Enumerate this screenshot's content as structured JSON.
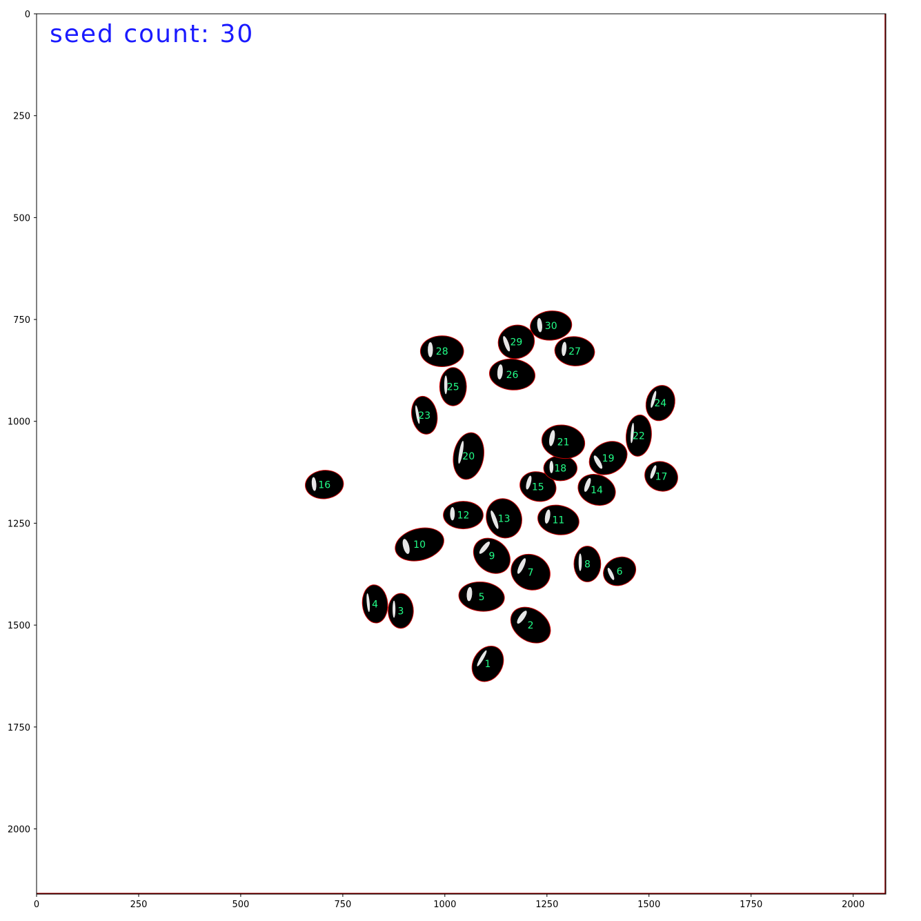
{
  "image": {
    "overlay_text": "seed count: 30",
    "x_range": [
      0,
      2080
    ],
    "y_range": [
      0,
      2160
    ],
    "x_ticks": [
      "0",
      "250",
      "500",
      "750",
      "1000",
      "1250",
      "1500",
      "1750",
      "2000"
    ],
    "y_ticks": [
      "0",
      "250",
      "500",
      "750",
      "1000",
      "1250",
      "1500",
      "1750",
      "2000"
    ],
    "colors": {
      "background": "#ffffff",
      "seed_fill": "#000000",
      "seed_outline": "#cc0000",
      "label_color": "#22ff88",
      "count_text": "#1a1aff",
      "frame_right": "#8b0000"
    }
  },
  "seeds": [
    {
      "label": "1",
      "x": 1105,
      "y": 1595,
      "rx": 35,
      "ry": 45,
      "rot": 30
    },
    {
      "label": "2",
      "x": 1210,
      "y": 1500,
      "rx": 52,
      "ry": 38,
      "rot": 35
    },
    {
      "label": "3",
      "x": 892,
      "y": 1465,
      "rx": 30,
      "ry": 42,
      "rot": 0
    },
    {
      "label": "4",
      "x": 829,
      "y": 1448,
      "rx": 30,
      "ry": 46,
      "rot": -5
    },
    {
      "label": "5",
      "x": 1090,
      "y": 1430,
      "rx": 55,
      "ry": 35,
      "rot": 5
    },
    {
      "label": "6",
      "x": 1428,
      "y": 1368,
      "rx": 40,
      "ry": 33,
      "rot": -25
    },
    {
      "label": "7",
      "x": 1210,
      "y": 1370,
      "rx": 48,
      "ry": 42,
      "rot": 25
    },
    {
      "label": "8",
      "x": 1349,
      "y": 1350,
      "rx": 32,
      "ry": 43,
      "rot": 0
    },
    {
      "label": "9",
      "x": 1115,
      "y": 1330,
      "rx": 48,
      "ry": 38,
      "rot": 40
    },
    {
      "label": "10",
      "x": 938,
      "y": 1302,
      "rx": 60,
      "ry": 38,
      "rot": -15
    },
    {
      "label": "11",
      "x": 1278,
      "y": 1242,
      "rx": 50,
      "ry": 35,
      "rot": 10
    },
    {
      "label": "12",
      "x": 1045,
      "y": 1230,
      "rx": 48,
      "ry": 33,
      "rot": 0
    },
    {
      "label": "13",
      "x": 1145,
      "y": 1238,
      "rx": 42,
      "ry": 48,
      "rot": -20
    },
    {
      "label": "14",
      "x": 1372,
      "y": 1168,
      "rx": 46,
      "ry": 36,
      "rot": 20
    },
    {
      "label": "15",
      "x": 1228,
      "y": 1160,
      "rx": 44,
      "ry": 35,
      "rot": 15
    },
    {
      "label": "16",
      "x": 705,
      "y": 1155,
      "rx": 46,
      "ry": 34,
      "rot": -5
    },
    {
      "label": "17",
      "x": 1530,
      "y": 1135,
      "rx": 40,
      "ry": 35,
      "rot": 20
    },
    {
      "label": "18",
      "x": 1283,
      "y": 1115,
      "rx": 40,
      "ry": 30,
      "rot": 0
    },
    {
      "label": "19",
      "x": 1400,
      "y": 1090,
      "rx": 48,
      "ry": 37,
      "rot": -30
    },
    {
      "label": "20",
      "x": 1058,
      "y": 1085,
      "rx": 36,
      "ry": 57,
      "rot": 10
    },
    {
      "label": "21",
      "x": 1290,
      "y": 1050,
      "rx": 52,
      "ry": 40,
      "rot": 10
    },
    {
      "label": "22",
      "x": 1475,
      "y": 1035,
      "rx": 30,
      "ry": 50,
      "rot": 5
    },
    {
      "label": "23",
      "x": 950,
      "y": 985,
      "rx": 30,
      "ry": 46,
      "rot": -10
    },
    {
      "label": "24",
      "x": 1528,
      "y": 955,
      "rx": 34,
      "ry": 43,
      "rot": 15
    },
    {
      "label": "25",
      "x": 1020,
      "y": 915,
      "rx": 32,
      "ry": 46,
      "rot": 0
    },
    {
      "label": "26",
      "x": 1165,
      "y": 885,
      "rx": 55,
      "ry": 37,
      "rot": 5
    },
    {
      "label": "27",
      "x": 1318,
      "y": 828,
      "rx": 48,
      "ry": 35,
      "rot": 5
    },
    {
      "label": "28",
      "x": 993,
      "y": 828,
      "rx": 52,
      "ry": 37,
      "rot": 0
    },
    {
      "label": "29",
      "x": 1175,
      "y": 805,
      "rx": 44,
      "ry": 40,
      "rot": -20
    },
    {
      "label": "30",
      "x": 1260,
      "y": 765,
      "rx": 50,
      "ry": 35,
      "rot": -5
    }
  ]
}
